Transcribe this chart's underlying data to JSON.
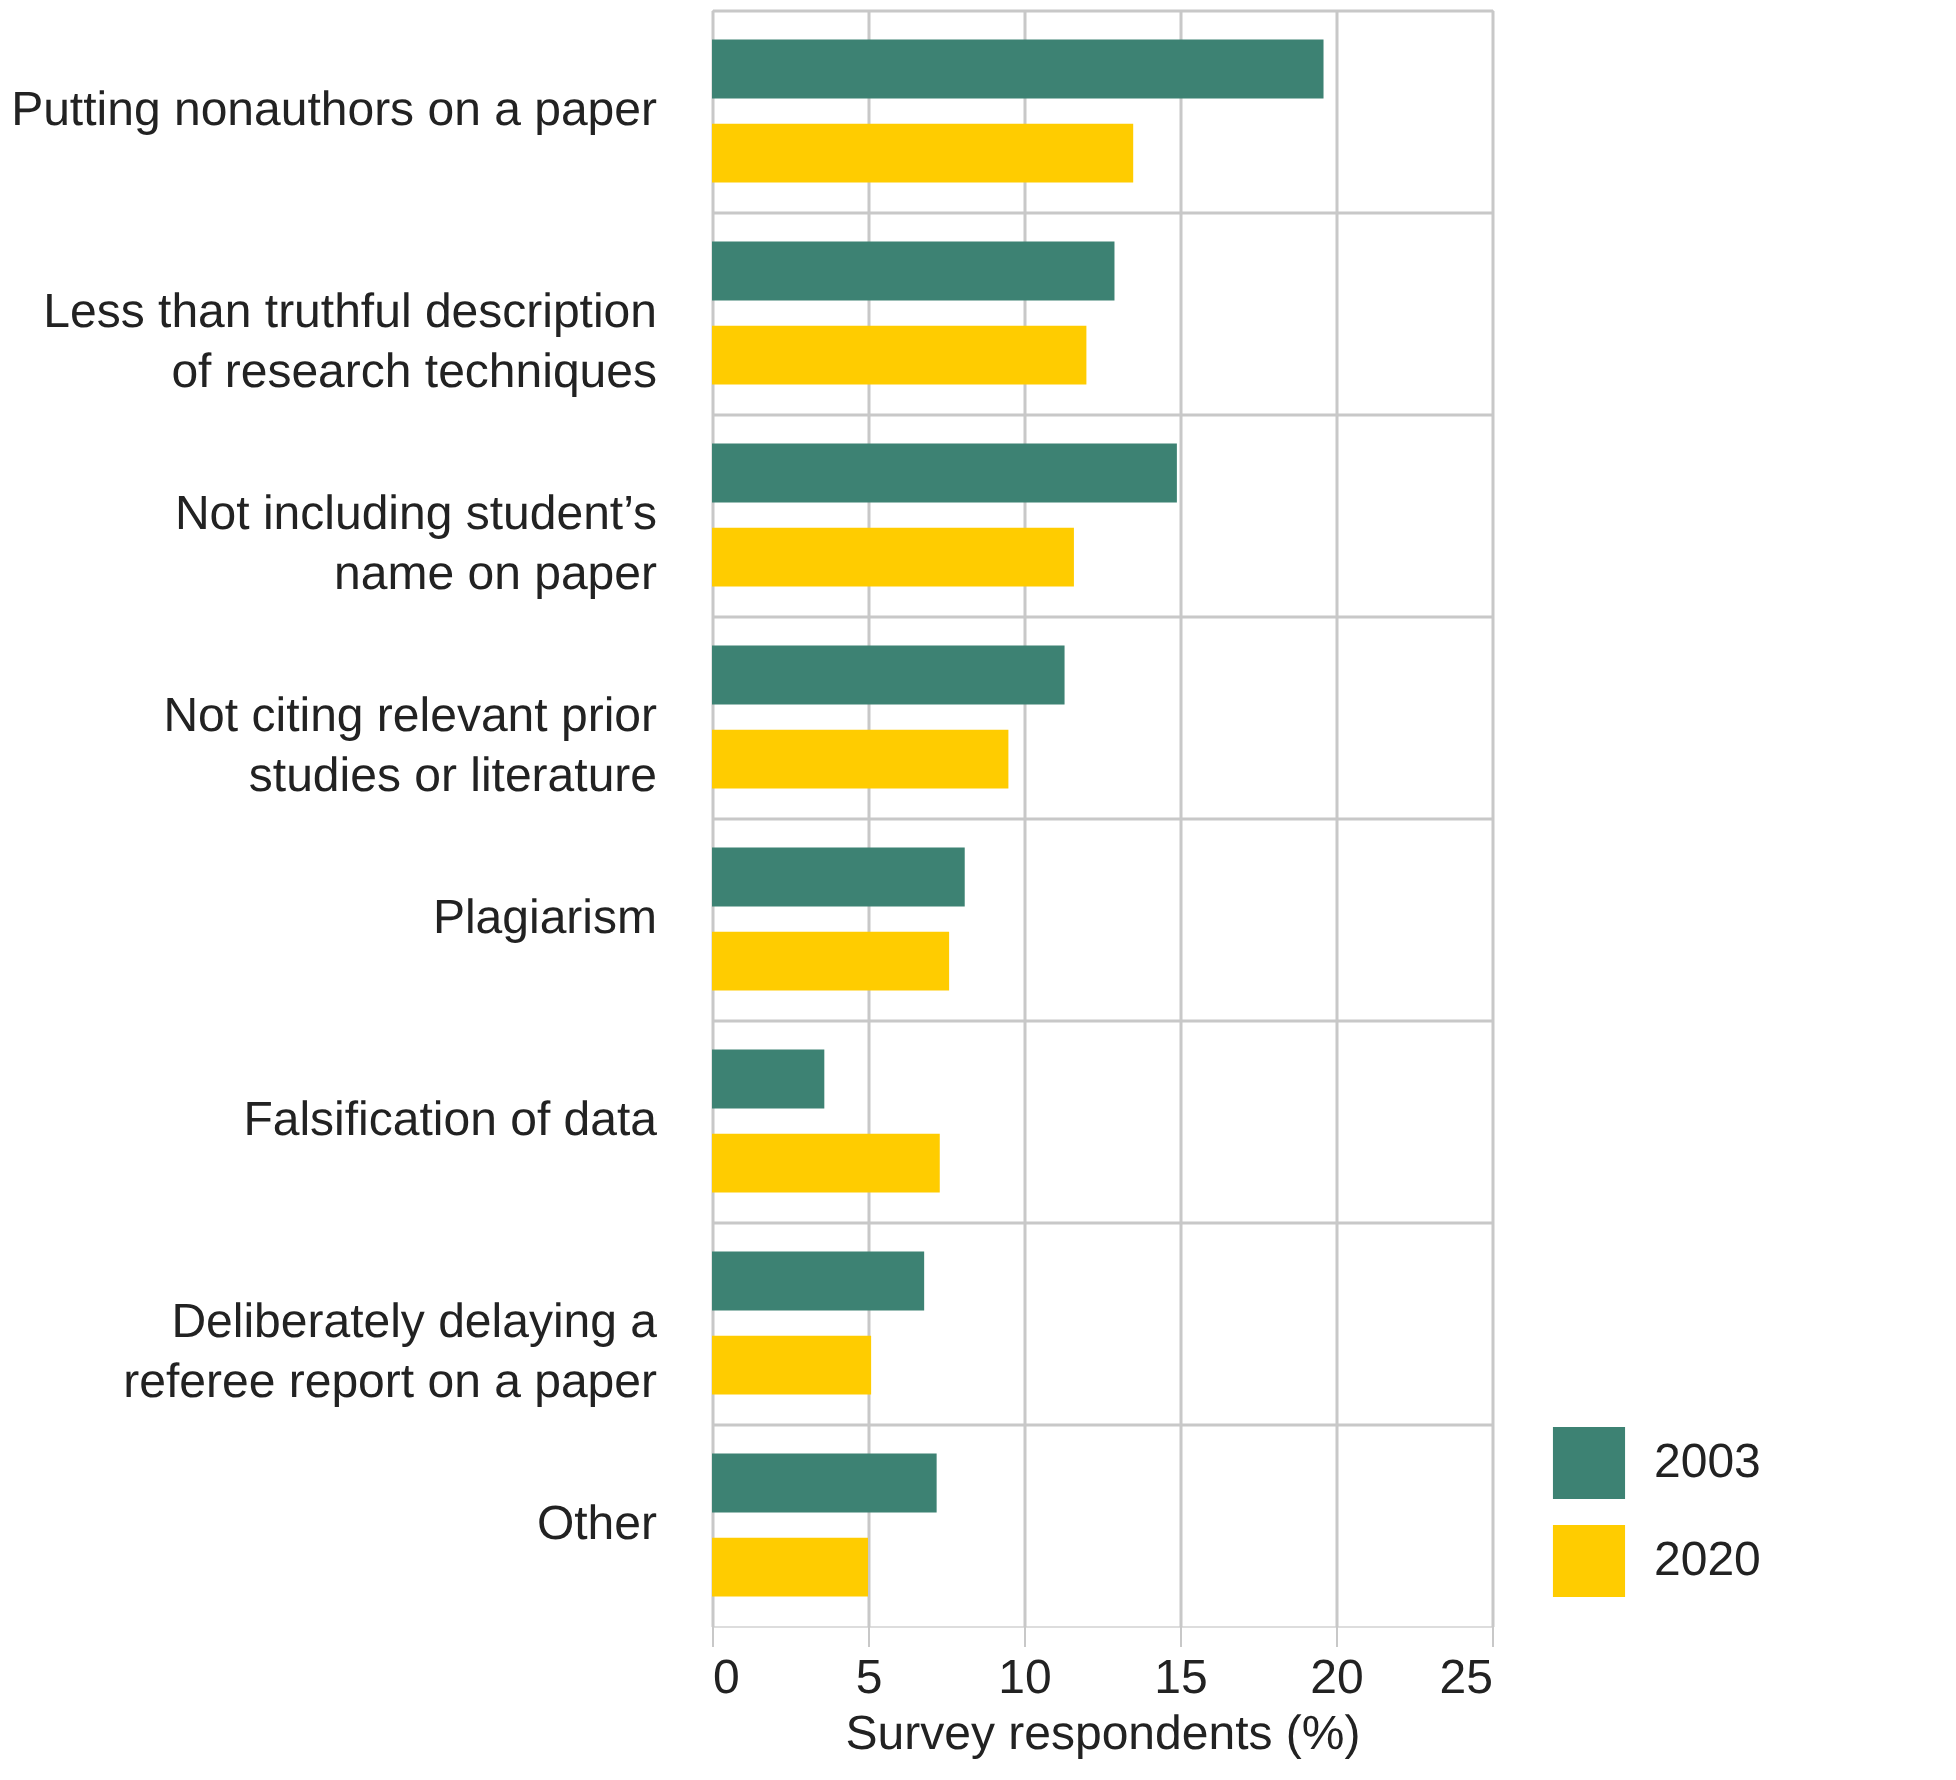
{
  "chart_data": {
    "type": "bar",
    "orientation": "horizontal",
    "xlabel": "Survey respondents (%)",
    "categories": [
      "Putting nonauthors on a paper",
      "Less than truthful description\nof research techniques",
      "Not including student’s\nname on paper",
      "Not citing relevant prior\nstudies or literature",
      "Plagiarism",
      "Falsification of data",
      "Deliberately delaying a\nreferee report on a paper",
      "Other"
    ],
    "series": [
      {
        "name": "2003",
        "color": "#3d8273",
        "values": [
          19.6,
          12.9,
          14.9,
          11.3,
          8.1,
          3.6,
          6.8,
          7.2
        ]
      },
      {
        "name": "2020",
        "color": "#ffcc00",
        "values": [
          13.5,
          12.0,
          11.6,
          9.5,
          7.6,
          7.3,
          5.1,
          5.0
        ]
      }
    ],
    "xlim": [
      0,
      25
    ],
    "xticks": [
      0,
      5,
      10,
      15,
      20,
      25
    ],
    "grid": true,
    "legend": "bottom right"
  }
}
